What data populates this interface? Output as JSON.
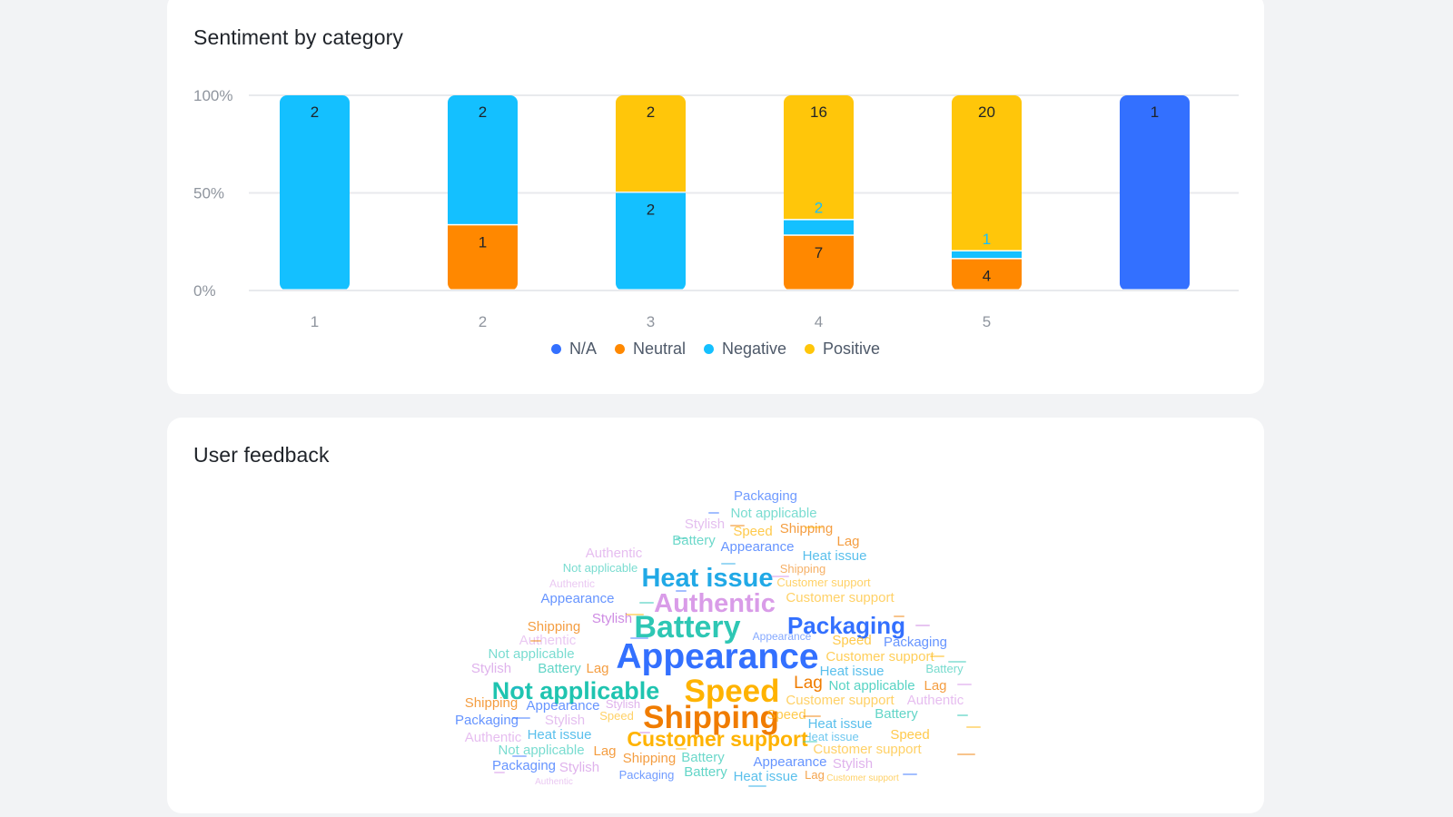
{
  "chart_card": {
    "title": "Sentiment by category"
  },
  "cloud_card": {
    "title": "User feedback"
  },
  "chart_data": {
    "type": "bar",
    "stacked": true,
    "normalized": true,
    "title": "Sentiment by category",
    "categories": [
      "1",
      "2",
      "3",
      "4",
      "5",
      ""
    ],
    "y_ticks": [
      "0%",
      "50%",
      "100%"
    ],
    "ylim": [
      0,
      100
    ],
    "grid": true,
    "legend_position": "bottom",
    "series": [
      {
        "name": "N/A",
        "color": "#3370ff",
        "values": [
          0,
          0,
          0,
          0,
          0,
          1
        ]
      },
      {
        "name": "Neutral",
        "color": "#ff8800",
        "values": [
          0,
          1,
          0,
          7,
          4,
          0
        ]
      },
      {
        "name": "Negative",
        "color": "#14c0ff",
        "values": [
          2,
          2,
          2,
          2,
          1,
          0
        ]
      },
      {
        "name": "Positive",
        "color": "#ffc60a",
        "values": [
          0,
          0,
          2,
          16,
          20,
          0
        ]
      }
    ],
    "legend_order": [
      "N/A",
      "Neutral",
      "Negative",
      "Positive"
    ]
  },
  "word_cloud": {
    "type": "word_cloud",
    "words": [
      {
        "text": "Appearance",
        "color": "#3370ff"
      },
      {
        "text": "Shipping",
        "color": "#f07c00"
      },
      {
        "text": "Speed",
        "color": "#ffb300"
      },
      {
        "text": "Battery",
        "color": "#2ec7b4"
      },
      {
        "text": "Heat issue",
        "color": "#21a9e6"
      },
      {
        "text": "Authentic",
        "color": "#d591e6"
      },
      {
        "text": "Packaging",
        "color": "#3370ff"
      },
      {
        "text": "Not applicable",
        "color": "#1fc4b0"
      },
      {
        "text": "Customer support",
        "color": "#ffb300"
      },
      {
        "text": "Lag",
        "color": "#f07c00"
      },
      {
        "text": "Stylish",
        "color": "#c97ee0"
      }
    ]
  }
}
